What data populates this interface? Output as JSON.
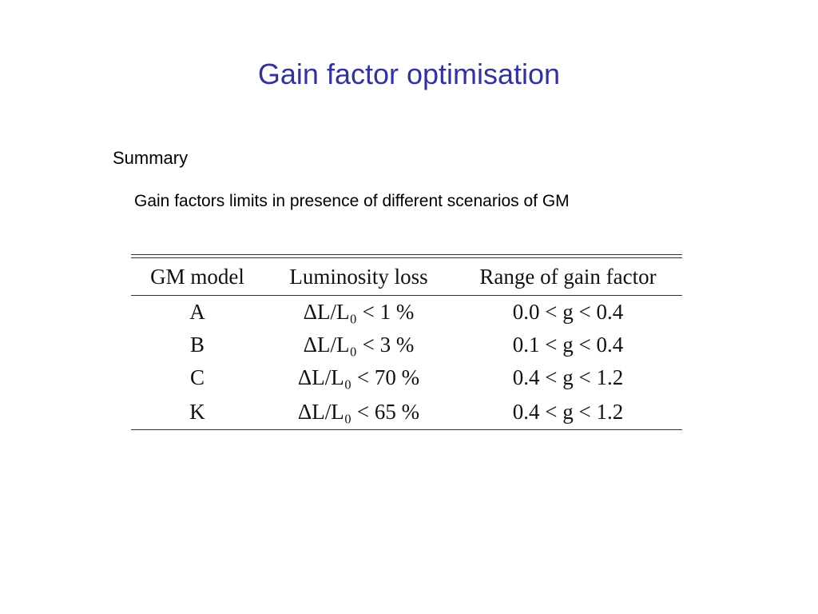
{
  "slide": {
    "title": "Gain factor optimisation",
    "summary_label": "Summary",
    "caption": "Gain factors limits in presence of different scenarios of GM"
  },
  "table": {
    "headers": [
      "GM model",
      "Luminosity loss",
      "Range of gain factor"
    ],
    "rows": [
      {
        "model": "A",
        "loss": "ΔL/L₀ < 1 %",
        "range": "0.0 < g < 0.4"
      },
      {
        "model": "B",
        "loss": "ΔL/L₀ < 3 %",
        "range": "0.1 < g < 0.4"
      },
      {
        "model": "C",
        "loss": "ΔL/L₀ < 70 %",
        "range": "0.4 < g < 1.2"
      },
      {
        "model": "K",
        "loss": "ΔL/L₀ < 65 %",
        "range": "0.4 < g < 1.2"
      }
    ]
  },
  "colors": {
    "title": "#333399",
    "text": "#000000",
    "background": "#ffffff"
  }
}
